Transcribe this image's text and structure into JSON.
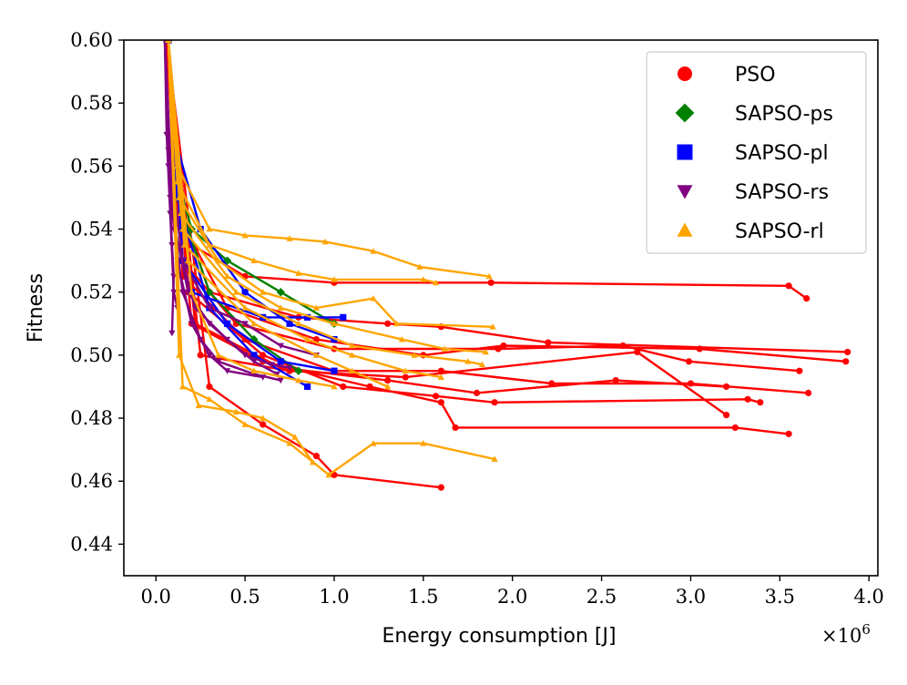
{
  "chart_data": {
    "type": "line",
    "title": "",
    "xlabel": "Energy consumption [J]",
    "ylabel": "Fitness",
    "x_scale_label": "×10",
    "x_scale_exponent": "6",
    "xlim": [
      -0.18,
      4.05
    ],
    "ylim": [
      0.43,
      0.6
    ],
    "xticks": [
      0.0,
      0.5,
      1.0,
      1.5,
      2.0,
      2.5,
      3.0,
      3.5,
      4.0
    ],
    "xtick_labels": [
      "0.0",
      "0.5",
      "1.0",
      "1.5",
      "2.0",
      "2.5",
      "3.0",
      "3.5",
      "4.0"
    ],
    "yticks": [
      0.44,
      0.46,
      0.48,
      0.5,
      0.52,
      0.54,
      0.56,
      0.58,
      0.6
    ],
    "ytick_labels": [
      "0.44",
      "0.46",
      "0.48",
      "0.50",
      "0.52",
      "0.54",
      "0.56",
      "0.58",
      "0.60"
    ],
    "grid": false,
    "legend_position": "top-right",
    "series": [
      {
        "name": "PSO",
        "color": "#ff0000",
        "marker": "circle",
        "runs": [
          [
            [
              0.06,
              0.6
            ],
            [
              0.1,
              0.56
            ],
            [
              0.2,
              0.535
            ],
            [
              0.5,
              0.525
            ],
            [
              1.0,
              0.523
            ],
            [
              1.88,
              0.523
            ],
            [
              3.55,
              0.522
            ],
            [
              3.65,
              0.518
            ]
          ],
          [
            [
              0.06,
              0.6
            ],
            [
              0.12,
              0.55
            ],
            [
              0.3,
              0.52
            ],
            [
              0.8,
              0.512
            ],
            [
              1.3,
              0.51
            ],
            [
              1.6,
              0.509
            ],
            [
              2.2,
              0.504
            ],
            [
              3.88,
              0.501
            ]
          ],
          [
            [
              0.06,
              0.6
            ],
            [
              0.12,
              0.545
            ],
            [
              0.4,
              0.515
            ],
            [
              0.9,
              0.505
            ],
            [
              1.5,
              0.5
            ],
            [
              1.95,
              0.503
            ],
            [
              3.05,
              0.502
            ],
            [
              3.87,
              0.498
            ]
          ],
          [
            [
              0.06,
              0.6
            ],
            [
              0.15,
              0.53
            ],
            [
              0.45,
              0.51
            ],
            [
              1.0,
              0.502
            ],
            [
              1.92,
              0.502
            ],
            [
              2.62,
              0.503
            ],
            [
              2.99,
              0.498
            ],
            [
              3.61,
              0.495
            ]
          ],
          [
            [
              0.06,
              0.6
            ],
            [
              0.15,
              0.525
            ],
            [
              0.5,
              0.505
            ],
            [
              1.0,
              0.495
            ],
            [
              1.6,
              0.495
            ],
            [
              2.22,
              0.491
            ],
            [
              3.0,
              0.491
            ],
            [
              3.66,
              0.488
            ]
          ],
          [
            [
              0.06,
              0.6
            ],
            [
              0.18,
              0.52
            ],
            [
              0.6,
              0.5
            ],
            [
              1.05,
              0.49
            ],
            [
              1.57,
              0.487
            ],
            [
              1.9,
              0.485
            ],
            [
              3.32,
              0.486
            ],
            [
              3.39,
              0.485
            ]
          ],
          [
            [
              0.06,
              0.6
            ],
            [
              0.2,
              0.51
            ],
            [
              0.6,
              0.498
            ],
            [
              1.2,
              0.49
            ],
            [
              1.6,
              0.485
            ],
            [
              1.68,
              0.477
            ],
            [
              3.25,
              0.477
            ],
            [
              3.55,
              0.475
            ]
          ],
          [
            [
              0.06,
              0.6
            ],
            [
              0.22,
              0.51
            ],
            [
              0.7,
              0.496
            ],
            [
              1.3,
              0.492
            ],
            [
              1.8,
              0.488
            ],
            [
              2.58,
              0.492
            ],
            [
              3.2,
              0.49
            ]
          ],
          [
            [
              0.06,
              0.6
            ],
            [
              0.25,
              0.5
            ],
            [
              0.75,
              0.495
            ],
            [
              1.4,
              0.493
            ],
            [
              2.7,
              0.501
            ],
            [
              3.2,
              0.481
            ]
          ],
          [
            [
              0.06,
              0.6
            ],
            [
              0.3,
              0.49
            ],
            [
              0.6,
              0.478
            ],
            [
              0.9,
              0.468
            ],
            [
              1.0,
              0.462
            ],
            [
              1.6,
              0.458
            ]
          ]
        ]
      },
      {
        "name": "SAPSO-ps",
        "color": "#008000",
        "marker": "diamond",
        "runs": [
          [
            [
              0.07,
              0.6
            ],
            [
              0.1,
              0.56
            ],
            [
              0.2,
              0.54
            ],
            [
              0.4,
              0.53
            ],
            [
              0.7,
              0.52
            ],
            [
              1.0,
              0.51
            ]
          ],
          [
            [
              0.07,
              0.6
            ],
            [
              0.12,
              0.55
            ],
            [
              0.3,
              0.52
            ],
            [
              0.55,
              0.505
            ],
            [
              0.8,
              0.495
            ]
          ]
        ]
      },
      {
        "name": "SAPSO-pl",
        "color": "#0000ff",
        "marker": "square",
        "runs": [
          [
            [
              0.07,
              0.6
            ],
            [
              0.1,
              0.57
            ],
            [
              0.25,
              0.54
            ],
            [
              0.5,
              0.52
            ],
            [
              0.75,
              0.51
            ],
            [
              1.0,
              0.505
            ]
          ],
          [
            [
              0.07,
              0.6
            ],
            [
              0.12,
              0.55
            ],
            [
              0.3,
              0.515
            ],
            [
              0.55,
              0.5
            ],
            [
              0.85,
              0.49
            ]
          ],
          [
            [
              0.07,
              0.6
            ],
            [
              0.15,
              0.53
            ],
            [
              0.4,
              0.51
            ],
            [
              0.7,
              0.498
            ],
            [
              1.0,
              0.495
            ]
          ],
          [
            [
              0.07,
              0.6
            ],
            [
              0.2,
              0.52
            ],
            [
              0.6,
              0.512
            ],
            [
              0.85,
              0.512
            ],
            [
              1.05,
              0.512
            ]
          ]
        ]
      },
      {
        "name": "SAPSO-rs",
        "color": "#800080",
        "marker": "triangle-down",
        "runs": [
          [
            [
              0.05,
              0.6
            ],
            [
              0.06,
              0.57
            ],
            [
              0.08,
              0.545
            ],
            [
              0.1,
              0.52
            ],
            [
              0.12,
              0.515
            ]
          ],
          [
            [
              0.05,
              0.6
            ],
            [
              0.07,
              0.56
            ],
            [
              0.09,
              0.535
            ],
            [
              0.1,
              0.525
            ],
            [
              0.09,
              0.507
            ]
          ],
          [
            [
              0.05,
              0.6
            ],
            [
              0.08,
              0.56
            ],
            [
              0.12,
              0.53
            ],
            [
              0.2,
              0.51
            ],
            [
              0.3,
              0.5
            ],
            [
              0.4,
              0.495
            ],
            [
              0.6,
              0.493
            ]
          ],
          [
            [
              0.05,
              0.6
            ],
            [
              0.08,
              0.55
            ],
            [
              0.15,
              0.52
            ],
            [
              0.25,
              0.505
            ],
            [
              0.35,
              0.498
            ],
            [
              0.55,
              0.494
            ],
            [
              0.7,
              0.492
            ]
          ],
          [
            [
              0.05,
              0.6
            ],
            [
              0.09,
              0.545
            ],
            [
              0.18,
              0.52
            ],
            [
              0.3,
              0.51
            ],
            [
              0.5,
              0.5
            ],
            [
              0.65,
              0.497
            ],
            [
              0.75,
              0.496
            ]
          ],
          [
            [
              0.05,
              0.6
            ],
            [
              0.1,
              0.54
            ],
            [
              0.22,
              0.515
            ],
            [
              0.4,
              0.505
            ],
            [
              0.55,
              0.498
            ],
            [
              0.68,
              0.494
            ]
          ],
          [
            [
              0.05,
              0.6
            ],
            [
              0.07,
              0.565
            ],
            [
              0.15,
              0.53
            ],
            [
              0.3,
              0.515
            ],
            [
              0.5,
              0.51
            ],
            [
              0.7,
              0.503
            ],
            [
              0.9,
              0.5
            ]
          ]
        ]
      },
      {
        "name": "SAPSO-rl",
        "color": "#ffa500",
        "marker": "triangle-up",
        "runs": [
          [
            [
              0.07,
              0.6
            ],
            [
              0.12,
              0.56
            ],
            [
              0.3,
              0.54
            ],
            [
              0.5,
              0.538
            ],
            [
              0.75,
              0.537
            ],
            [
              0.95,
              0.536
            ],
            [
              1.22,
              0.533
            ],
            [
              1.48,
              0.528
            ],
            [
              1.87,
              0.525
            ]
          ],
          [
            [
              0.07,
              0.6
            ],
            [
              0.12,
              0.555
            ],
            [
              0.3,
              0.535
            ],
            [
              0.55,
              0.53
            ],
            [
              0.8,
              0.526
            ],
            [
              1.0,
              0.524
            ],
            [
              1.5,
              0.524
            ],
            [
              1.57,
              0.523
            ]
          ],
          [
            [
              0.07,
              0.6
            ],
            [
              0.13,
              0.55
            ],
            [
              0.35,
              0.53
            ],
            [
              0.6,
              0.52
            ],
            [
              0.9,
              0.515
            ],
            [
              1.22,
              0.518
            ],
            [
              1.35,
              0.51
            ],
            [
              1.89,
              0.509
            ]
          ],
          [
            [
              0.07,
              0.6
            ],
            [
              0.14,
              0.545
            ],
            [
              0.4,
              0.525
            ],
            [
              0.7,
              0.515
            ],
            [
              1.0,
              0.51
            ],
            [
              1.38,
              0.505
            ],
            [
              1.62,
              0.502
            ],
            [
              1.85,
              0.501
            ]
          ],
          [
            [
              0.07,
              0.6
            ],
            [
              0.15,
              0.54
            ],
            [
              0.45,
              0.52
            ],
            [
              0.8,
              0.51
            ],
            [
              1.1,
              0.503
            ],
            [
              1.45,
              0.5
            ],
            [
              1.75,
              0.498
            ],
            [
              1.83,
              0.497
            ]
          ],
          [
            [
              0.07,
              0.6
            ],
            [
              0.16,
              0.535
            ],
            [
              0.5,
              0.515
            ],
            [
              0.85,
              0.505
            ],
            [
              1.1,
              0.5
            ],
            [
              1.4,
              0.495
            ],
            [
              1.6,
              0.493
            ]
          ],
          [
            [
              0.07,
              0.6
            ],
            [
              0.18,
              0.53
            ],
            [
              0.55,
              0.51
            ],
            [
              0.9,
              0.5
            ],
            [
              1.1,
              0.495
            ],
            [
              1.3,
              0.49
            ]
          ],
          [
            [
              0.07,
              0.6
            ],
            [
              0.2,
              0.52
            ],
            [
              0.35,
              0.5
            ],
            [
              0.55,
              0.495
            ],
            [
              0.8,
              0.492
            ],
            [
              1.0,
              0.49
            ]
          ],
          [
            [
              0.07,
              0.6
            ],
            [
              0.13,
              0.5
            ],
            [
              0.24,
              0.484
            ],
            [
              0.45,
              0.482
            ],
            [
              0.6,
              0.48
            ],
            [
              0.78,
              0.474
            ],
            [
              0.88,
              0.466
            ]
          ],
          [
            [
              0.07,
              0.6
            ],
            [
              0.15,
              0.49
            ],
            [
              0.3,
              0.486
            ],
            [
              0.5,
              0.478
            ],
            [
              0.75,
              0.472
            ],
            [
              0.97,
              0.462
            ],
            [
              1.22,
              0.472
            ],
            [
              1.5,
              0.472
            ],
            [
              1.9,
              0.467
            ]
          ]
        ]
      }
    ]
  }
}
